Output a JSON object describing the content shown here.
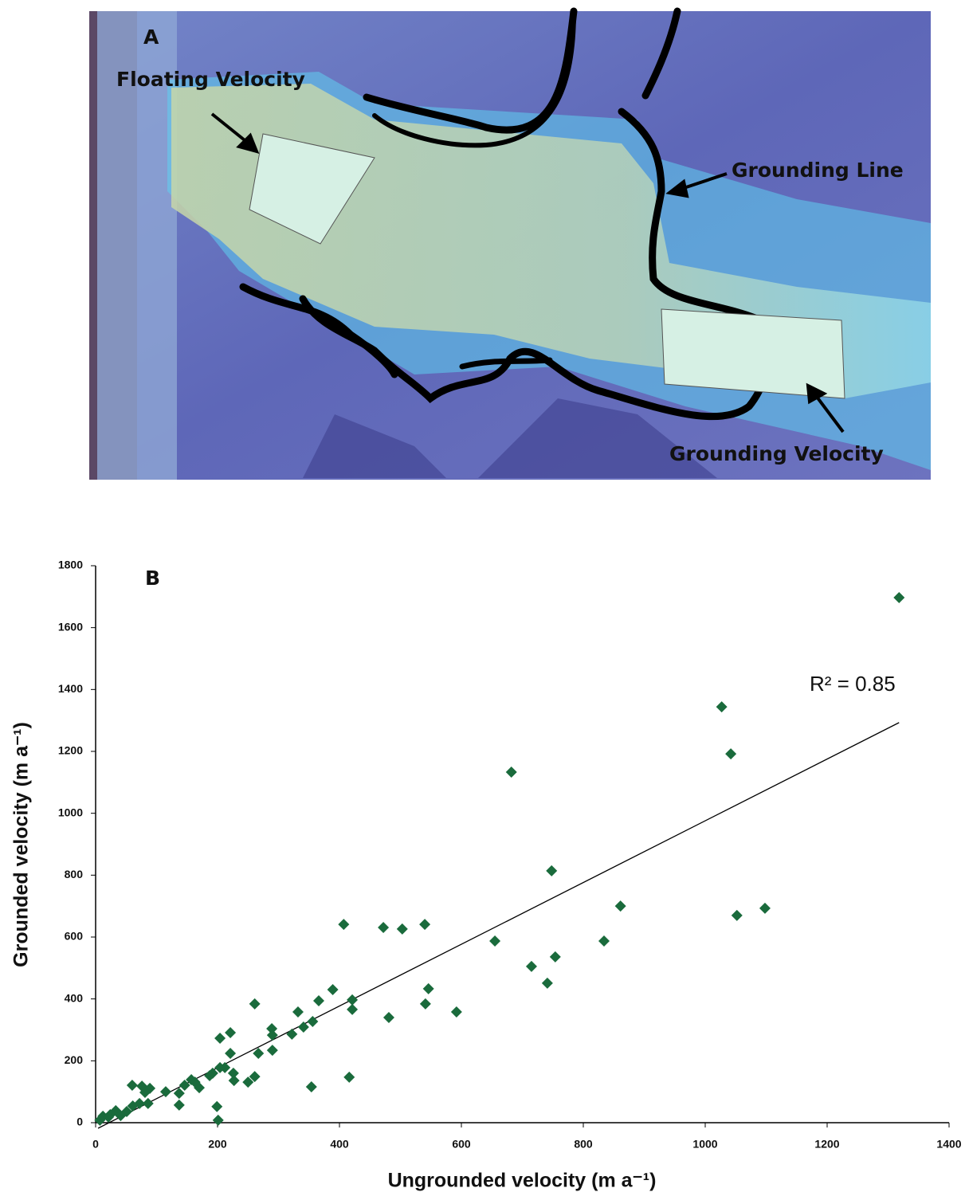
{
  "panel_a": {
    "label": "A",
    "annotations": [
      "Floating Velocity",
      "Grounding Line",
      "Grounding Velocity"
    ]
  },
  "chart_data": {
    "type": "scatter",
    "label": "B",
    "x_label": "Ungrounded velocity (m a⁻¹)",
    "y_label": "Grounded velocity (m a⁻¹)",
    "annotation": "R² = 0.85",
    "xlim": [
      0,
      1400
    ],
    "ylim": [
      0,
      1800
    ],
    "xticks": [
      0,
      200,
      400,
      600,
      800,
      1000,
      1200,
      1400
    ],
    "yticks": [
      0,
      200,
      400,
      600,
      800,
      1000,
      1200,
      1400,
      1600,
      1800
    ],
    "color": "#1a6b3c",
    "x": [
      1318,
      1027,
      1042,
      682,
      748,
      861,
      1052,
      1098,
      834,
      754,
      715,
      655,
      741,
      407,
      472,
      503,
      540,
      546,
      541,
      592,
      481,
      421,
      421,
      389,
      366,
      332,
      356,
      341,
      322,
      289,
      290,
      290,
      261,
      267,
      261,
      250,
      221,
      204,
      221,
      212,
      226,
      227,
      204,
      192,
      187,
      416,
      354,
      199,
      201,
      163,
      157,
      170,
      146,
      137,
      137,
      115,
      89,
      76,
      60,
      81,
      72,
      61,
      86,
      51,
      33,
      24,
      12,
      7,
      41,
      21
    ],
    "y": [
      1697,
      1344,
      1192,
      1133,
      814,
      700,
      670,
      693,
      587,
      536,
      505,
      587,
      451,
      641,
      631,
      626,
      641,
      433,
      384,
      358,
      340,
      397,
      366,
      430,
      394,
      358,
      327,
      309,
      286,
      304,
      283,
      234,
      384,
      224,
      149,
      131,
      291,
      273,
      224,
      178,
      160,
      136,
      178,
      160,
      152,
      147,
      116,
      52,
      8,
      131,
      139,
      113,
      121,
      95,
      57,
      100,
      111,
      118,
      121,
      98,
      62,
      54,
      62,
      36,
      39,
      26,
      21,
      8,
      23,
      18
    ],
    "trendline": {
      "x": [
        4,
        1318
      ],
      "y": [
        -18,
        1293
      ]
    }
  }
}
